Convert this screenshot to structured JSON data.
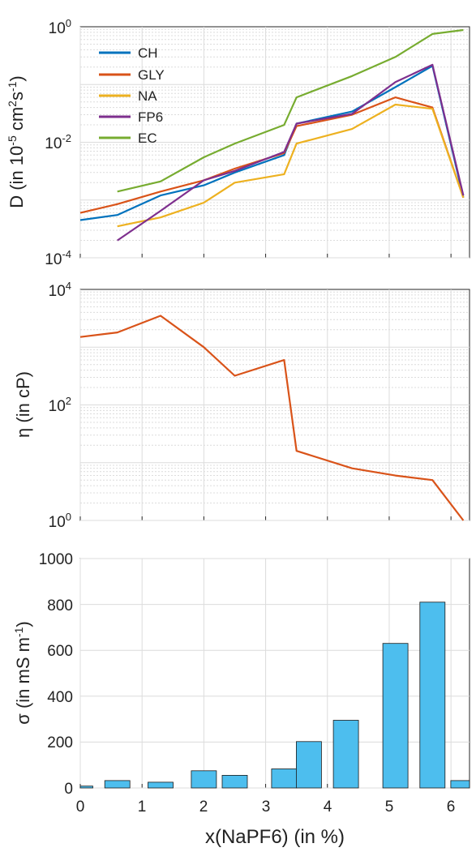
{
  "colors": {
    "CH": "#0072BD",
    "GLY": "#D95319",
    "NA": "#EDB120",
    "FP6": "#7E2F8E",
    "EC": "#77AC30",
    "bar": "#4DBEEE",
    "axis": "#262626",
    "grid": "#dcdcdc"
  },
  "chart_data": [
    {
      "type": "line",
      "ylabel_main": "D (in 10",
      "ylabel_sup1": "-5",
      "ylabel_mid": " cm",
      "ylabel_sup2": "2",
      "ylabel_s": "s",
      "ylabel_sup3": "-1",
      "ylabel_end": ")",
      "yscale": "log",
      "ylim": [
        0.0001,
        1
      ],
      "xlim": [
        0,
        6.3
      ],
      "grid": true,
      "legend_position": "top-left",
      "yticks": [
        {
          "base": "10",
          "exp": "0",
          "value": 1
        },
        {
          "base": "10",
          "exp": "-2",
          "value": 0.01
        },
        {
          "base": "10",
          "exp": "-4",
          "value": 0.0001
        }
      ],
      "series": [
        {
          "name": "CH",
          "x": [
            0,
            0.6,
            1.3,
            2.0,
            2.5,
            3.3,
            3.5,
            4.4,
            5.1,
            5.7,
            6.2
          ],
          "y": [
            0.00045,
            0.00055,
            0.0012,
            0.0018,
            0.003,
            0.006,
            0.021,
            0.034,
            0.09,
            0.21,
            0.0011
          ]
        },
        {
          "name": "GLY",
          "x": [
            0,
            0.6,
            1.3,
            2.0,
            2.5,
            3.3,
            3.5,
            4.4,
            5.1,
            5.7,
            6.2
          ],
          "y": [
            0.0006,
            0.00085,
            0.0014,
            0.0022,
            0.0035,
            0.0065,
            0.019,
            0.03,
            0.06,
            0.04,
            0.0011
          ]
        },
        {
          "name": "NA",
          "x": [
            0.6,
            1.3,
            2.0,
            2.5,
            3.3,
            3.5,
            4.4,
            5.1,
            5.7,
            6.2
          ],
          "y": [
            0.00035,
            0.0005,
            0.0009,
            0.002,
            0.0028,
            0.0095,
            0.017,
            0.045,
            0.038,
            0.0011
          ]
        },
        {
          "name": "FP6",
          "x": [
            0.6,
            1.3,
            2.0,
            2.5,
            3.3,
            3.5,
            4.4,
            5.1,
            5.7,
            6.2
          ],
          "y": [
            0.0002,
            0.00065,
            0.0022,
            0.0032,
            0.0068,
            0.021,
            0.031,
            0.11,
            0.22,
            0.0012
          ]
        },
        {
          "name": "EC",
          "x": [
            0.6,
            1.3,
            2.0,
            2.5,
            3.3,
            3.5,
            4.4,
            5.1,
            5.7,
            6.2
          ],
          "y": [
            0.0014,
            0.0021,
            0.0055,
            0.0095,
            0.02,
            0.06,
            0.14,
            0.3,
            0.75,
            0.88
          ]
        }
      ]
    },
    {
      "type": "line",
      "ylabel": "η (in cP)",
      "yscale": "log",
      "ylim": [
        1,
        10000
      ],
      "xlim": [
        0,
        6.3
      ],
      "grid": true,
      "yticks": [
        {
          "base": "10",
          "exp": "4",
          "value": 10000
        },
        {
          "base": "10",
          "exp": "2",
          "value": 100
        },
        {
          "base": "10",
          "exp": "0",
          "value": 1
        }
      ],
      "series": [
        {
          "x": [
            0,
            0.6,
            1.3,
            2.0,
            2.5,
            3.3,
            3.5,
            4.4,
            5.1,
            5.7,
            6.2
          ],
          "y": [
            1500,
            1800,
            3500,
            1000,
            320,
            600,
            16,
            8,
            6,
            5,
            1
          ]
        }
      ]
    },
    {
      "type": "bar",
      "ylabel_main": "σ (in mS m",
      "ylabel_sup": "-1",
      "ylabel_end": ")",
      "xlabel": "x(NaPF6) (in %)",
      "ylim": [
        0,
        1000
      ],
      "xlim": [
        0,
        6.3
      ],
      "grid": true,
      "yticks": [
        "0",
        "200",
        "400",
        "600",
        "800",
        "1000"
      ],
      "xticks": [
        "0",
        "1",
        "2",
        "3",
        "4",
        "5",
        "6"
      ],
      "x": [
        0,
        0.6,
        1.3,
        2.0,
        2.5,
        3.3,
        3.7,
        4.3,
        5.1,
        5.7,
        6.2
      ],
      "values": [
        8,
        32,
        25,
        75,
        55,
        83,
        202,
        295,
        630,
        810,
        32
      ]
    }
  ]
}
